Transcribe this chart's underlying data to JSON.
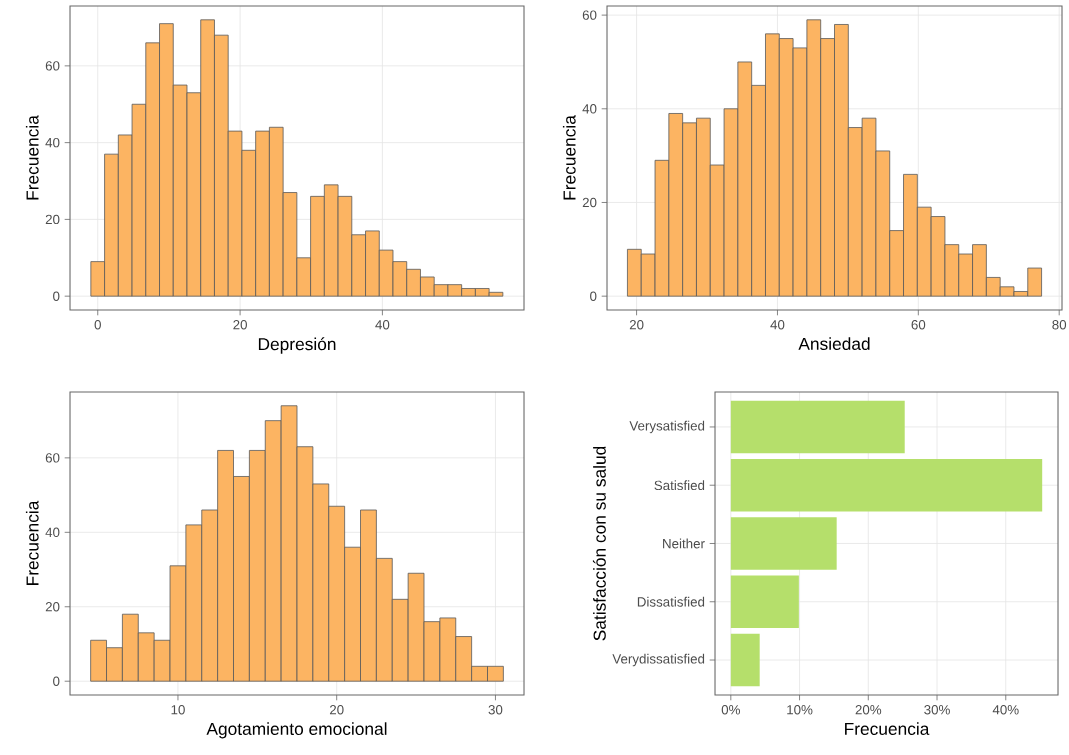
{
  "chart_data": [
    {
      "type": "histogram",
      "xlabel": "Depresión",
      "ylabel": "Frecuencia",
      "color": "#fcb462",
      "bins": [
        -0.97,
        0.96,
        2.89,
        4.82,
        6.75,
        8.68,
        10.61,
        12.54,
        14.47,
        16.4,
        18.33,
        20.26,
        22.19,
        24.12,
        26.05,
        27.98,
        29.91,
        31.84,
        33.77,
        35.7,
        37.63,
        39.56,
        41.49,
        43.42,
        45.35,
        47.28,
        49.21,
        51.14,
        53.07,
        55.0,
        56.93
      ],
      "values": [
        9,
        37,
        42,
        50,
        66,
        71,
        55,
        53,
        72,
        68,
        43,
        38,
        43,
        44,
        27,
        10,
        26,
        29,
        26,
        16,
        17,
        12,
        9,
        7,
        5,
        3,
        3,
        2,
        2,
        1
      ],
      "xlim": [
        -3.9,
        59.9
      ],
      "ylim": [
        -3.6,
        75.6
      ],
      "xticks": [
        0,
        20,
        40
      ],
      "yticks": [
        0,
        20,
        40,
        60
      ],
      "grid": true
    },
    {
      "type": "histogram",
      "xlabel": "Ansiedad",
      "ylabel": "Frecuencia",
      "color": "#fcb462",
      "bins": [
        18.7,
        20.66,
        22.62,
        24.58,
        26.54,
        28.5,
        30.46,
        32.42,
        34.38,
        36.34,
        38.3,
        40.26,
        42.22,
        44.18,
        46.14,
        48.1,
        50.06,
        52.02,
        53.98,
        55.94,
        57.9,
        59.86,
        61.82,
        63.78,
        65.74,
        67.7,
        69.66,
        71.62,
        73.58,
        75.54,
        77.5
      ],
      "values": [
        10,
        9,
        29,
        39,
        37,
        38,
        28,
        40,
        50,
        45,
        56,
        55,
        53,
        59,
        55,
        58,
        36,
        38,
        31,
        14,
        26,
        19,
        17,
        11,
        9,
        11,
        4,
        2,
        1,
        6
      ],
      "xlim": [
        15.8,
        80.4
      ],
      "ylim": [
        -2.95,
        61.95
      ],
      "xticks": [
        20,
        40,
        60,
        80
      ],
      "yticks": [
        0,
        20,
        40,
        60
      ],
      "grid": true
    },
    {
      "type": "histogram",
      "xlabel": "Agotamiento emocional",
      "ylabel": "Frecuencia",
      "color": "#fcb462",
      "bins": [
        4.5,
        5.5,
        6.5,
        7.5,
        8.5,
        9.5,
        10.5,
        11.5,
        12.5,
        13.5,
        14.5,
        15.5,
        16.5,
        17.5,
        18.5,
        19.5,
        20.5,
        21.5,
        22.5,
        23.5,
        24.5,
        25.5,
        26.5,
        27.5,
        28.5,
        29.5,
        30.5
      ],
      "values": [
        11,
        9,
        18,
        13,
        11,
        31,
        42,
        46,
        62,
        55,
        62,
        70,
        74,
        63,
        53,
        47,
        36,
        46,
        33,
        22,
        29,
        16,
        17,
        12,
        4,
        4
      ],
      "xlim": [
        3.2,
        31.8
      ],
      "ylim": [
        -3.7,
        77.7
      ],
      "xticks": [
        10,
        20,
        30
      ],
      "yticks": [
        0,
        20,
        40,
        60
      ],
      "grid": true
    },
    {
      "type": "bar",
      "orientation": "horizontal",
      "xlabel": "Frecuencia",
      "ylabel": "Satisfacción con su salud",
      "color": "#b5df6b",
      "categories": [
        "Verysatisfied",
        "Satisfied",
        "Neither",
        "Dissatisfied",
        "Verydissatisfied"
      ],
      "values": [
        25.3,
        45.3,
        15.4,
        9.9,
        4.2
      ],
      "xlim": [
        -2.3,
        47.6
      ],
      "xticks": [
        {
          "value": 0,
          "label": "0%"
        },
        {
          "value": 10,
          "label": "10%"
        },
        {
          "value": 20,
          "label": "20%"
        },
        {
          "value": 30,
          "label": "30%"
        },
        {
          "value": 40,
          "label": "40%"
        }
      ],
      "grid": true
    }
  ]
}
